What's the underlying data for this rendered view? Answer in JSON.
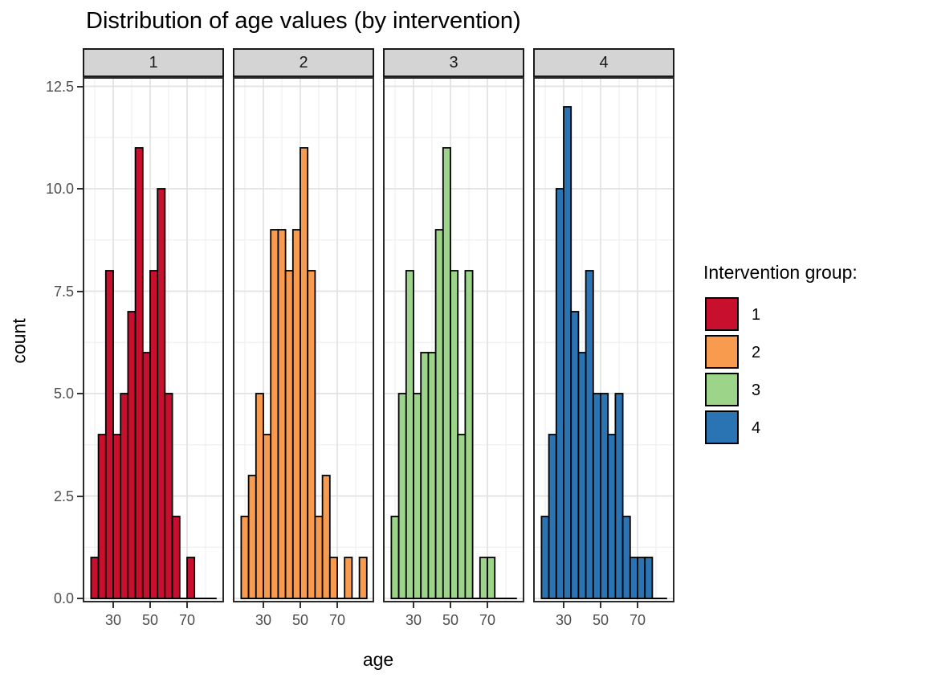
{
  "title": "Distribution of age values (by intervention)",
  "axes": {
    "x": {
      "label": "age",
      "tick_labels": [
        "30",
        "50",
        "70"
      ],
      "tick_values": [
        30,
        50,
        70
      ],
      "minor_values": [
        20,
        40,
        60,
        80
      ],
      "range": [
        13.3,
        90.6
      ]
    },
    "y": {
      "label": "count",
      "tick_labels": [
        "0.0",
        "2.5",
        "5.0",
        "7.5",
        "10.0",
        "12.5"
      ],
      "tick_values": [
        0,
        2.5,
        5,
        7.5,
        10,
        12.5
      ],
      "minor_values": [
        1.25,
        3.75,
        6.25,
        8.75,
        11.25
      ],
      "range": [
        0,
        12.5
      ]
    }
  },
  "legend": {
    "title": "Intervention group:",
    "items": [
      {
        "label": "1",
        "color": "#c8102e"
      },
      {
        "label": "2",
        "color": "#f99b4e"
      },
      {
        "label": "3",
        "color": "#9cd58a"
      },
      {
        "label": "4",
        "color": "#2b74b3"
      }
    ]
  },
  "chart_data": {
    "type": "bar",
    "subtype": "faceted-histogram",
    "title": "Distribution of age values (by intervention)",
    "xlabel": "age",
    "ylabel": "count",
    "ylim": [
      0,
      12.5
    ],
    "grid": true,
    "legend_position": "right",
    "bins": {
      "start": 18,
      "width": 4,
      "n": 17
    },
    "bin_centers": [
      20,
      24,
      28,
      32,
      36,
      40,
      44,
      48,
      52,
      56,
      60,
      64,
      68,
      72,
      76,
      80,
      84
    ],
    "facets": [
      {
        "label": "1",
        "color": "#c8102e",
        "counts": [
          1,
          4,
          8,
          4,
          5,
          7,
          11,
          6,
          8,
          10,
          5,
          2,
          0,
          1,
          0,
          0,
          0
        ]
      },
      {
        "label": "2",
        "color": "#f99b4e",
        "counts": [
          2,
          3,
          5,
          4,
          9,
          9,
          8,
          9,
          11,
          8,
          2,
          3,
          1,
          0,
          1,
          0,
          1
        ]
      },
      {
        "label": "3",
        "color": "#9cd58a",
        "counts": [
          2,
          5,
          8,
          5,
          6,
          6,
          9,
          11,
          8,
          4,
          8,
          0,
          1,
          1,
          0,
          0,
          0
        ]
      },
      {
        "label": "4",
        "color": "#2b74b3",
        "counts": [
          2,
          4,
          10,
          12,
          7,
          6,
          8,
          5,
          5,
          4,
          5,
          2,
          1,
          1,
          1,
          0,
          0
        ]
      }
    ]
  }
}
